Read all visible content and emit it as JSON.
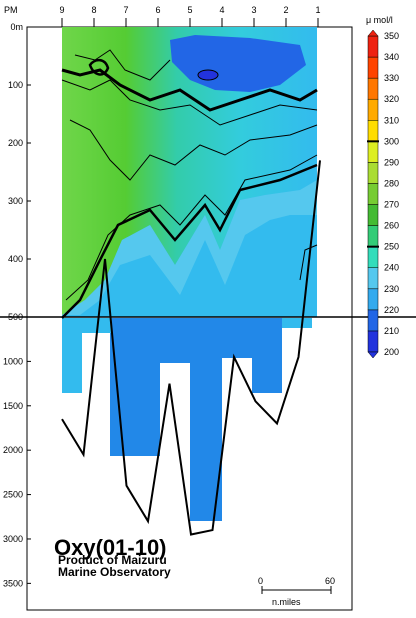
{
  "chart_data": {
    "type": "heatmap",
    "title": "Oxy(01-10)",
    "subtitle_lines": [
      "Product of Maizuru",
      "Marine Observatory"
    ],
    "x_axis_label": "PM",
    "stations": [
      "9",
      "8",
      "7",
      "6",
      "5",
      "4",
      "3",
      "2",
      "1"
    ],
    "y_axis": {
      "upper_ticks": [
        "0m",
        "100",
        "200",
        "300",
        "400",
        "500"
      ],
      "lower_ticks": [
        "1000",
        "1500",
        "2000",
        "2500",
        "3000",
        "3500"
      ],
      "upper_range": [
        0,
        500
      ],
      "lower_range": [
        500,
        3800
      ],
      "scale_break_depth": 500
    },
    "colorbar": {
      "unit": "μ mol/l",
      "levels": [
        200,
        210,
        220,
        230,
        240,
        250,
        260,
        270,
        280,
        290,
        300,
        310,
        320,
        330,
        340,
        350
      ],
      "labels": [
        "200",
        "210",
        "220",
        "230",
        "240",
        "250",
        "260",
        "270",
        "280",
        "290",
        "300",
        "310",
        "320",
        "330",
        "340",
        "350"
      ],
      "colors": [
        "#2233dd",
        "#2266e6",
        "#33aaee",
        "#55c8ee",
        "#33ddbb",
        "#33cc77",
        "#44bb33",
        "#77cc33",
        "#aadd33",
        "#ddee22",
        "#ffdd00",
        "#ffaa00",
        "#ff7700",
        "#ff4400",
        "#ee2211"
      ],
      "bold_levels": [
        250,
        300
      ]
    },
    "bottom_depth_m": [
      1650,
      2050,
      400,
      2400,
      2800,
      1250,
      2950,
      2900,
      950,
      1450,
      1700,
      950,
      230
    ],
    "scale": {
      "start_label": "0",
      "end_label": "60",
      "unit": "n.miles"
    }
  }
}
